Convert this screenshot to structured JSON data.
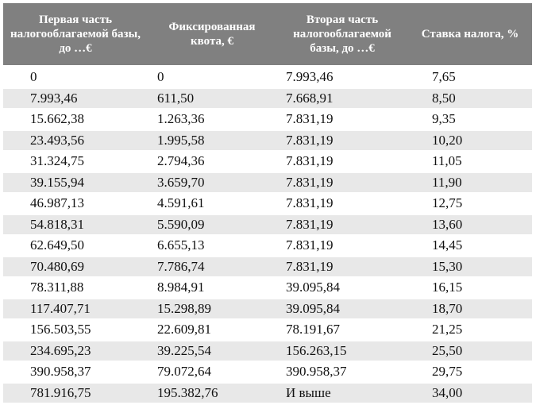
{
  "headers": [
    "Первая часть налогооблагаемой базы, до …€",
    "Фиксированная квота, €",
    "Вторая часть налогооблагаемой базы, до …€",
    "Ставка налога, %"
  ],
  "rows": [
    [
      "0",
      "0",
      "7.993,46",
      "7,65"
    ],
    [
      "7.993,46",
      "611,50",
      "7.668,91",
      "8,50"
    ],
    [
      "15.662,38",
      "1.263,36",
      "7.831,19",
      "9,35"
    ],
    [
      "23.493,56",
      "1.995,58",
      "7.831,19",
      "10,20"
    ],
    [
      "31.324,75",
      "2.794,36",
      "7.831,19",
      "11,05"
    ],
    [
      "39.155,94",
      "3.659,70",
      "7.831,19",
      "11,90"
    ],
    [
      "46.987,13",
      "4.591,61",
      "7.831,19",
      "12,75"
    ],
    [
      "54.818,31",
      "5.590,09",
      "7.831,19",
      "13,60"
    ],
    [
      "62.649,50",
      "6.655,13",
      "7.831,19",
      "14,45"
    ],
    [
      "70.480,69",
      "7.786,74",
      "7.831,19",
      "15,30"
    ],
    [
      "78.311,88",
      "8.984,91",
      "39.095,84",
      "16,15"
    ],
    [
      "117.407,71",
      "15.298,89",
      "39.095,84",
      "18,70"
    ],
    [
      "156.503,55",
      "22.609,81",
      "78.191,67",
      "21,25"
    ],
    [
      "234.695,23",
      "39.225,54",
      "156.263,15",
      "25,50"
    ],
    [
      "390.958,37",
      "79.072,64",
      "390.958,37",
      "29,75"
    ],
    [
      "781.916,75",
      "195.382,76",
      "И выше",
      "34,00"
    ]
  ]
}
